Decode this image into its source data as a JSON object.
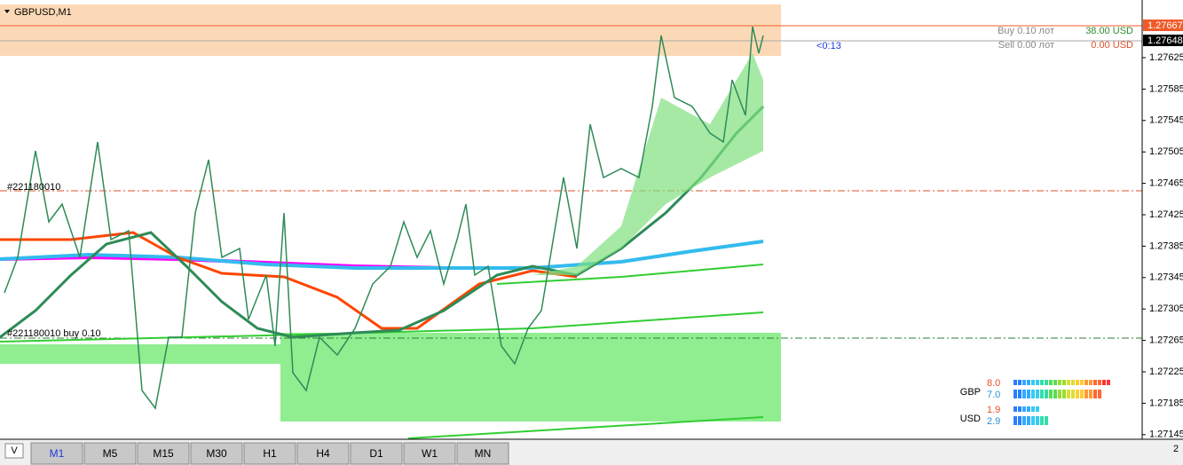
{
  "chart": {
    "symbol": "GBPUSD,M1",
    "buy_label": "Buy 0.10 лот",
    "buy_profit": "38.00 USD",
    "sell_label": "Sell 0.00 лот",
    "sell_profit": "0.00 USD",
    "timer": "<0:13",
    "order_line_label": "#221180010",
    "position_label": "#221180010 buy 0.10",
    "ask_price": "1.27667",
    "bid_price": "1.27648",
    "price_axis": [
      "1.27625",
      "1.27585",
      "1.27545",
      "1.27505",
      "1.27465",
      "1.27425",
      "1.27385",
      "1.27345",
      "1.27305",
      "1.27265",
      "1.27225",
      "1.27185",
      "1.27145"
    ],
    "strength": [
      {
        "currency": "GBP",
        "values": [
          "8.0",
          "7.0"
        ]
      },
      {
        "currency": "USD",
        "values": [
          "1.9",
          "2.9"
        ]
      }
    ]
  },
  "toolbar": {
    "menu": "V",
    "timeframes": [
      "M1",
      "M5",
      "M15",
      "M30",
      "H1",
      "H4",
      "D1",
      "W1",
      "MN"
    ],
    "page": "2"
  }
}
